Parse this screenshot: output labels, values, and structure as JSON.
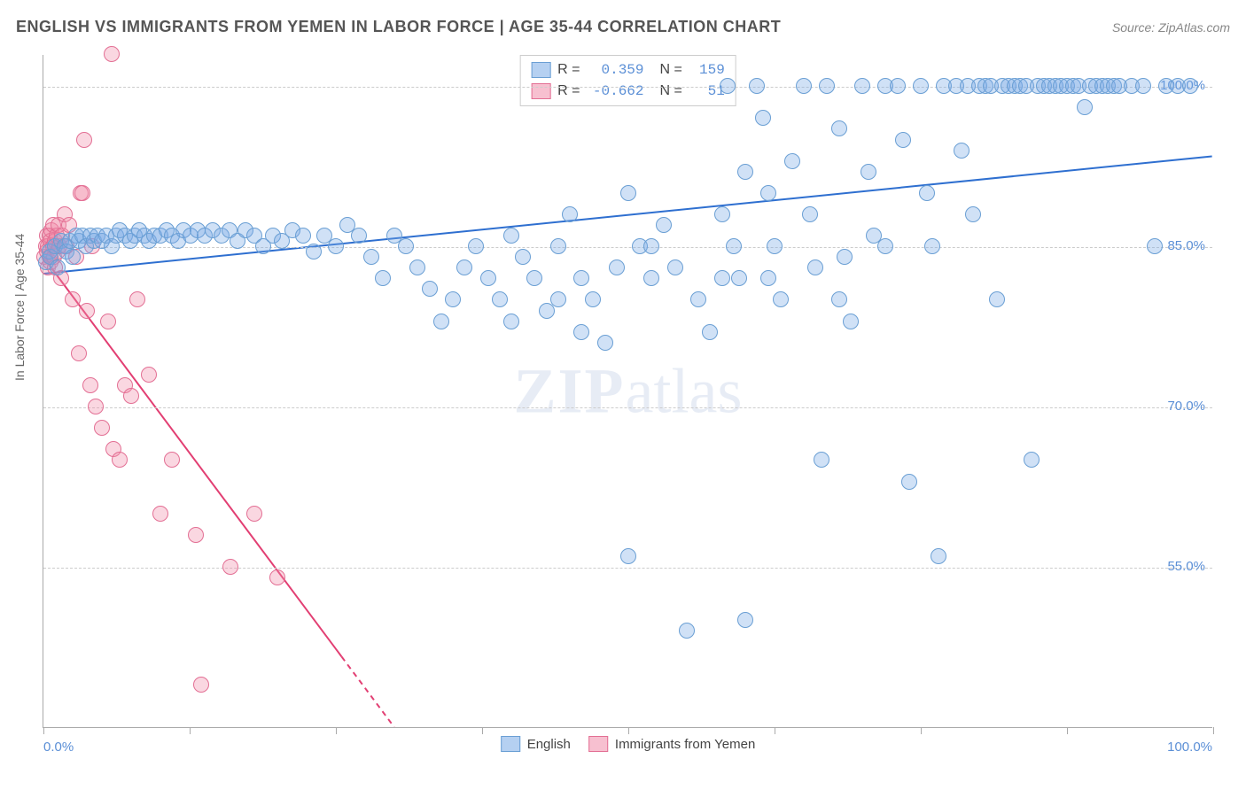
{
  "header": {
    "title": "ENGLISH VS IMMIGRANTS FROM YEMEN IN LABOR FORCE | AGE 35-44 CORRELATION CHART",
    "source_prefix": "Source: ",
    "source": "ZipAtlas.com"
  },
  "axes": {
    "ylabel": "In Labor Force | Age 35-44",
    "ylabel_color": "#666666",
    "ylabel_fontsize": 14,
    "x_min": 0,
    "x_max": 100,
    "y_min": 40,
    "y_max": 103,
    "y_ticks": [
      55.0,
      70.0,
      85.0,
      100.0
    ],
    "y_tick_labels": [
      "55.0%",
      "70.0%",
      "85.0%",
      "100.0%"
    ],
    "y_tick_color": "#5b8fd6",
    "x_ticks_minor": [
      0,
      12.5,
      25,
      37.5,
      50,
      62.5,
      75,
      87.5,
      100
    ],
    "x_tick_labels": [
      {
        "x": 0,
        "text": "0.0%",
        "color": "#5b8fd6"
      },
      {
        "x": 100,
        "text": "100.0%",
        "color": "#5b8fd6"
      }
    ],
    "grid_color": "#cccccc",
    "axis_color": "#aaaaaa",
    "background": "#ffffff"
  },
  "series": {
    "english": {
      "label": "English",
      "marker_fill": "rgba(120,170,230,0.35)",
      "marker_stroke": "#6a9fd4",
      "marker_radius": 9,
      "line_color": "#2e6fd0",
      "line_width": 2,
      "r": 0.359,
      "n": 159,
      "trend": {
        "x1": 0,
        "y1": 82.5,
        "x2": 100,
        "y2": 93.5
      },
      "points": [
        [
          0.2,
          83.5
        ],
        [
          0.5,
          84.5
        ],
        [
          0.6,
          84.0
        ],
        [
          1.0,
          85.0
        ],
        [
          1.2,
          83.0
        ],
        [
          1.5,
          85.5
        ],
        [
          1.8,
          85.0
        ],
        [
          2.0,
          84.5
        ],
        [
          2.3,
          85.5
        ],
        [
          2.5,
          84.0
        ],
        [
          2.8,
          86.0
        ],
        [
          3.0,
          85.5
        ],
        [
          3.3,
          86.0
        ],
        [
          3.6,
          85.0
        ],
        [
          4.0,
          86.0
        ],
        [
          4.3,
          85.5
        ],
        [
          4.6,
          86.0
        ],
        [
          5.0,
          85.5
        ],
        [
          5.4,
          86.0
        ],
        [
          5.8,
          85.0
        ],
        [
          6.2,
          86.0
        ],
        [
          6.5,
          86.5
        ],
        [
          7.0,
          86.0
        ],
        [
          7.4,
          85.5
        ],
        [
          7.8,
          86.0
        ],
        [
          8.2,
          86.5
        ],
        [
          8.6,
          86.0
        ],
        [
          9.0,
          85.5
        ],
        [
          9.5,
          86.0
        ],
        [
          10.0,
          86.0
        ],
        [
          10.5,
          86.5
        ],
        [
          11.0,
          86.0
        ],
        [
          11.5,
          85.5
        ],
        [
          12.0,
          86.5
        ],
        [
          12.6,
          86.0
        ],
        [
          13.2,
          86.5
        ],
        [
          13.8,
          86.0
        ],
        [
          14.5,
          86.5
        ],
        [
          15.2,
          86.0
        ],
        [
          15.9,
          86.5
        ],
        [
          16.6,
          85.5
        ],
        [
          17.3,
          86.5
        ],
        [
          18.0,
          86.0
        ],
        [
          18.8,
          85.0
        ],
        [
          19.6,
          86.0
        ],
        [
          20.4,
          85.5
        ],
        [
          21.3,
          86.5
        ],
        [
          22.2,
          86.0
        ],
        [
          23.1,
          84.5
        ],
        [
          24.0,
          86.0
        ],
        [
          25.0,
          85.0
        ],
        [
          26.0,
          87.0
        ],
        [
          27.0,
          86.0
        ],
        [
          28.0,
          84.0
        ],
        [
          29.0,
          82.0
        ],
        [
          30.0,
          86.0
        ],
        [
          31.0,
          85.0
        ],
        [
          32.0,
          83.0
        ],
        [
          33.0,
          81.0
        ],
        [
          34.0,
          78.0
        ],
        [
          35.0,
          80.0
        ],
        [
          36.0,
          83.0
        ],
        [
          37.0,
          85.0
        ],
        [
          38.0,
          82.0
        ],
        [
          39.0,
          80.0
        ],
        [
          40.0,
          78.0
        ],
        [
          41.0,
          84.0
        ],
        [
          42.0,
          82.0
        ],
        [
          43.0,
          79.0
        ],
        [
          44.0,
          85.0
        ],
        [
          45.0,
          88.0
        ],
        [
          46.0,
          82.0
        ],
        [
          47.0,
          80.0
        ],
        [
          48.0,
          76.0
        ],
        [
          49.0,
          83.0
        ],
        [
          50.0,
          90.0
        ],
        [
          50.0,
          56.0
        ],
        [
          51.0,
          85.0
        ],
        [
          52.0,
          82.0
        ],
        [
          53.0,
          87.0
        ],
        [
          54.0,
          83.0
        ],
        [
          55.0,
          49.0
        ],
        [
          56.0,
          80.0
        ],
        [
          57.0,
          77.0
        ],
        [
          58.0,
          88.0
        ],
        [
          58.5,
          100.0
        ],
        [
          59.0,
          85.0
        ],
        [
          59.5,
          82.0
        ],
        [
          60.0,
          92.0
        ],
        [
          60.0,
          50.0
        ],
        [
          61.0,
          100.0
        ],
        [
          61.5,
          97.0
        ],
        [
          62.0,
          90.0
        ],
        [
          62.5,
          85.0
        ],
        [
          63.0,
          80.0
        ],
        [
          64.0,
          93.0
        ],
        [
          65.0,
          100.0
        ],
        [
          65.5,
          88.0
        ],
        [
          66.0,
          83.0
        ],
        [
          66.5,
          65.0
        ],
        [
          67.0,
          100.0
        ],
        [
          68.0,
          96.0
        ],
        [
          68.5,
          84.0
        ],
        [
          69.0,
          78.0
        ],
        [
          70.0,
          100.0
        ],
        [
          70.5,
          92.0
        ],
        [
          71.0,
          86.0
        ],
        [
          72.0,
          100.0
        ],
        [
          73.0,
          100.0
        ],
        [
          73.5,
          95.0
        ],
        [
          74.0,
          63.0
        ],
        [
          75.0,
          100.0
        ],
        [
          75.5,
          90.0
        ],
        [
          76.0,
          85.0
        ],
        [
          76.5,
          56.0
        ],
        [
          77.0,
          100.0
        ],
        [
          78.0,
          100.0
        ],
        [
          78.5,
          94.0
        ],
        [
          79.0,
          100.0
        ],
        [
          79.5,
          88.0
        ],
        [
          80.0,
          100.0
        ],
        [
          80.5,
          100.0
        ],
        [
          81.0,
          100.0
        ],
        [
          81.5,
          80.0
        ],
        [
          82.0,
          100.0
        ],
        [
          82.5,
          100.0
        ],
        [
          83.0,
          100.0
        ],
        [
          83.5,
          100.0
        ],
        [
          84.0,
          100.0
        ],
        [
          84.5,
          65.0
        ],
        [
          85.0,
          100.0
        ],
        [
          85.5,
          100.0
        ],
        [
          86.0,
          100.0
        ],
        [
          86.5,
          100.0
        ],
        [
          87.0,
          100.0
        ],
        [
          87.5,
          100.0
        ],
        [
          88.0,
          100.0
        ],
        [
          88.5,
          100.0
        ],
        [
          89.0,
          98.0
        ],
        [
          89.5,
          100.0
        ],
        [
          90.0,
          100.0
        ],
        [
          90.5,
          100.0
        ],
        [
          91.0,
          100.0
        ],
        [
          91.5,
          100.0
        ],
        [
          92.0,
          100.0
        ],
        [
          93.0,
          100.0
        ],
        [
          94.0,
          100.0
        ],
        [
          95.0,
          85.0
        ],
        [
          96.0,
          100.0
        ],
        [
          97.0,
          100.0
        ],
        [
          98.0,
          100.0
        ],
        [
          68.0,
          80.0
        ],
        [
          58.0,
          82.0
        ],
        [
          40.0,
          86.0
        ],
        [
          44.0,
          80.0
        ],
        [
          46.0,
          77.0
        ],
        [
          52.0,
          85.0
        ],
        [
          62.0,
          82.0
        ],
        [
          72.0,
          85.0
        ]
      ]
    },
    "yemen": {
      "label": "Immigants from Yemen",
      "label_fixed": "Immigrants from Yemen",
      "marker_fill": "rgba(240,140,170,0.35)",
      "marker_stroke": "#e36f94",
      "marker_radius": 9,
      "line_color": "#e23f73",
      "line_width": 2,
      "r": -0.662,
      "n": 51,
      "trend": {
        "x1": 0,
        "y1": 84.0,
        "x2": 30,
        "y2": 40.0
      },
      "trend_dash_extension": {
        "x1": 25.5,
        "y1": 46.6,
        "x2": 30,
        "y2": 40.0
      },
      "points": [
        [
          0.1,
          84.0
        ],
        [
          0.2,
          85.0
        ],
        [
          0.3,
          84.5
        ],
        [
          0.3,
          86.0
        ],
        [
          0.4,
          85.0
        ],
        [
          0.4,
          83.0
        ],
        [
          0.5,
          86.0
        ],
        [
          0.5,
          84.0
        ],
        [
          0.6,
          85.5
        ],
        [
          0.6,
          83.5
        ],
        [
          0.7,
          86.5
        ],
        [
          0.8,
          85.0
        ],
        [
          0.8,
          87.0
        ],
        [
          0.9,
          84.0
        ],
        [
          1.0,
          85.5
        ],
        [
          1.0,
          83.0
        ],
        [
          1.1,
          86.0
        ],
        [
          1.2,
          84.5
        ],
        [
          1.3,
          87.0
        ],
        [
          1.4,
          85.0
        ],
        [
          1.5,
          82.0
        ],
        [
          1.6,
          86.0
        ],
        [
          1.8,
          88.0
        ],
        [
          2.0,
          85.0
        ],
        [
          2.2,
          87.0
        ],
        [
          2.5,
          80.0
        ],
        [
          2.8,
          84.0
        ],
        [
          3.0,
          75.0
        ],
        [
          3.2,
          90.0
        ],
        [
          3.3,
          90.0
        ],
        [
          3.5,
          95.0
        ],
        [
          3.7,
          79.0
        ],
        [
          4.0,
          72.0
        ],
        [
          4.2,
          85.0
        ],
        [
          4.5,
          70.0
        ],
        [
          5.0,
          68.0
        ],
        [
          5.5,
          78.0
        ],
        [
          5.8,
          103.0
        ],
        [
          6.0,
          66.0
        ],
        [
          6.5,
          65.0
        ],
        [
          7.0,
          72.0
        ],
        [
          7.5,
          71.0
        ],
        [
          8.0,
          80.0
        ],
        [
          9.0,
          73.0
        ],
        [
          10.0,
          60.0
        ],
        [
          11.0,
          65.0
        ],
        [
          13.0,
          58.0
        ],
        [
          16.0,
          55.0
        ],
        [
          18.0,
          60.0
        ],
        [
          20.0,
          54.0
        ],
        [
          13.5,
          44.0
        ]
      ]
    }
  },
  "legend_bottom": {
    "items": [
      {
        "label": "English",
        "fill": "rgba(120,170,230,0.55)",
        "stroke": "#6a9fd4"
      },
      {
        "label": "Immigrants from Yemen",
        "fill": "rgba(240,140,170,0.55)",
        "stroke": "#e36f94"
      }
    ]
  },
  "stats_box": {
    "r_label": "R =",
    "n_label": "N =",
    "rows": [
      {
        "fill": "rgba(120,170,230,0.55)",
        "stroke": "#6a9fd4",
        "r": "0.359",
        "n": "159",
        "text_color": "#5b8fd6",
        "label_color": "#444"
      },
      {
        "fill": "rgba(240,140,170,0.55)",
        "stroke": "#e36f94",
        "r": "-0.662",
        "n": "51",
        "text_color": "#5b8fd6",
        "label_color": "#444"
      }
    ]
  },
  "watermark": {
    "zip": "ZIP",
    "atlas": "atlas"
  }
}
